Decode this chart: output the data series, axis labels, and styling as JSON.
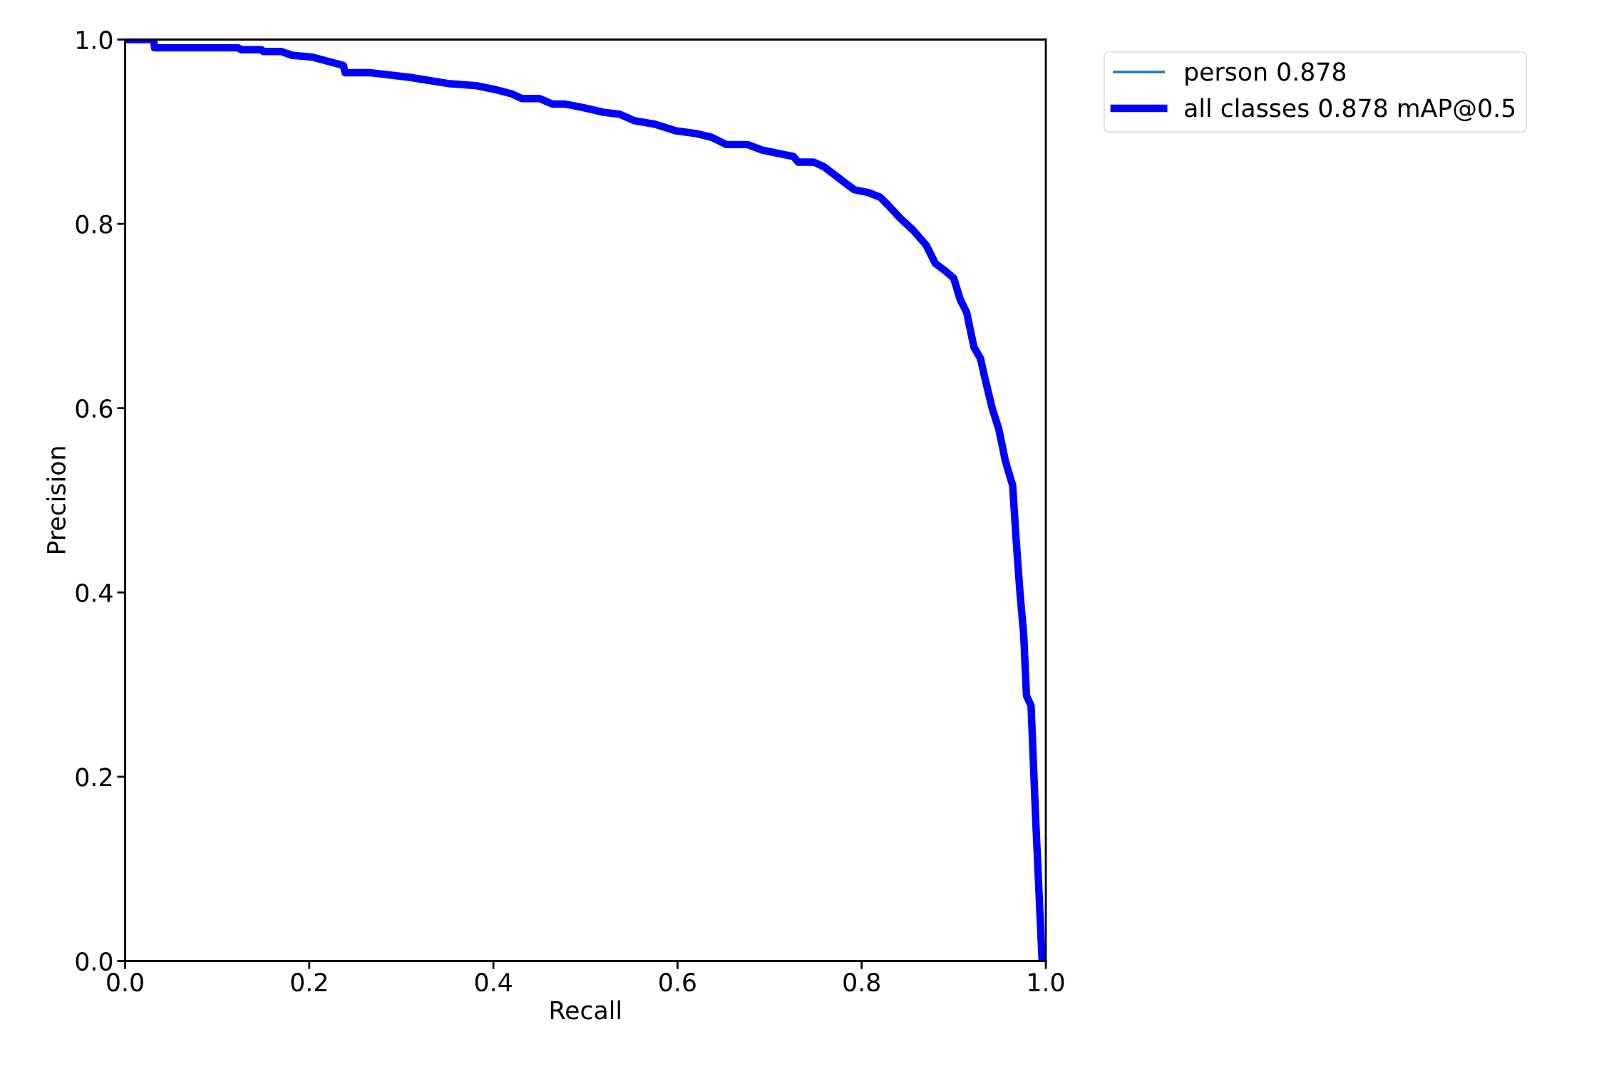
{
  "chart_data": {
    "type": "line",
    "xlabel": "Recall",
    "ylabel": "Precision",
    "xlim": [
      0.0,
      1.0
    ],
    "ylim": [
      0.0,
      1.0
    ],
    "xticks": [
      {
        "value": 0,
        "label": "0.0"
      },
      0.2,
      0.4,
      0.6,
      0.8,
      {
        "value": 1,
        "label": "1.0"
      }
    ],
    "yticks": [
      {
        "value": 0,
        "label": "0.0"
      },
      0.2,
      0.4,
      0.6,
      0.8,
      {
        "value": 1,
        "label": "1.0"
      }
    ],
    "grid": false,
    "legend": "top right",
    "marker": "none",
    "line_style": "solid",
    "x": [
      0,
      0.031,
      0.032,
      0.123,
      0.126,
      0.148,
      0.15,
      0.17,
      0.181,
      0.203,
      0.218,
      0.237,
      0.239,
      0.267,
      0.309,
      0.353,
      0.381,
      0.401,
      0.42,
      0.431,
      0.45,
      0.464,
      0.478,
      0.498,
      0.52,
      0.537,
      0.553,
      0.576,
      0.598,
      0.62,
      0.637,
      0.653,
      0.676,
      0.692,
      0.726,
      0.731,
      0.748,
      0.759,
      0.776,
      0.792,
      0.807,
      0.82,
      0.829,
      0.842,
      0.856,
      0.87,
      0.88,
      0.892,
      0.9,
      0.907,
      0.914,
      0.922,
      0.929,
      0.934,
      0.942,
      0.949,
      0.956,
      0.964,
      0.968,
      0.972,
      0.976,
      0.979,
      0.984,
      0.989,
      0.996
    ],
    "series": [
      {
        "name": "person 0.878",
        "color": "#1f77b4",
        "values": [
          null,
          null,
          null,
          null,
          null,
          null,
          null,
          null,
          null,
          null,
          null,
          null,
          null,
          null,
          null,
          null,
          null,
          null,
          null,
          null,
          null,
          null,
          null,
          null,
          null,
          null,
          null,
          null,
          null,
          null,
          null,
          null,
          null,
          null,
          null,
          null,
          null,
          null,
          null,
          null,
          null,
          null,
          null,
          null,
          null,
          null,
          null,
          null,
          null,
          null,
          null,
          null,
          null,
          null,
          null,
          null,
          null,
          null,
          null,
          null,
          null,
          null,
          null,
          null,
          null
        ]
      },
      {
        "name": "all classes 0.878 mAP@0.5",
        "color": "#0000ff",
        "values": [
          1.0,
          1.0,
          0.991,
          0.991,
          0.989,
          0.989,
          0.987,
          0.987,
          0.983,
          0.981,
          0.977,
          0.972,
          0.964,
          0.964,
          0.959,
          0.952,
          0.95,
          0.946,
          0.941,
          0.936,
          0.936,
          0.93,
          0.93,
          0.926,
          0.921,
          0.919,
          0.912,
          0.908,
          0.901,
          0.898,
          0.894,
          0.886,
          0.886,
          0.88,
          0.873,
          0.867,
          0.867,
          0.862,
          0.849,
          0.837,
          0.834,
          0.829,
          0.82,
          0.806,
          0.793,
          0.777,
          0.757,
          0.748,
          0.741,
          0.718,
          0.704,
          0.666,
          0.654,
          0.632,
          0.599,
          0.577,
          0.543,
          0.516,
          0.454,
          0.399,
          0.354,
          0.288,
          0.277,
          0.154,
          0.0
        ]
      }
    ]
  }
}
